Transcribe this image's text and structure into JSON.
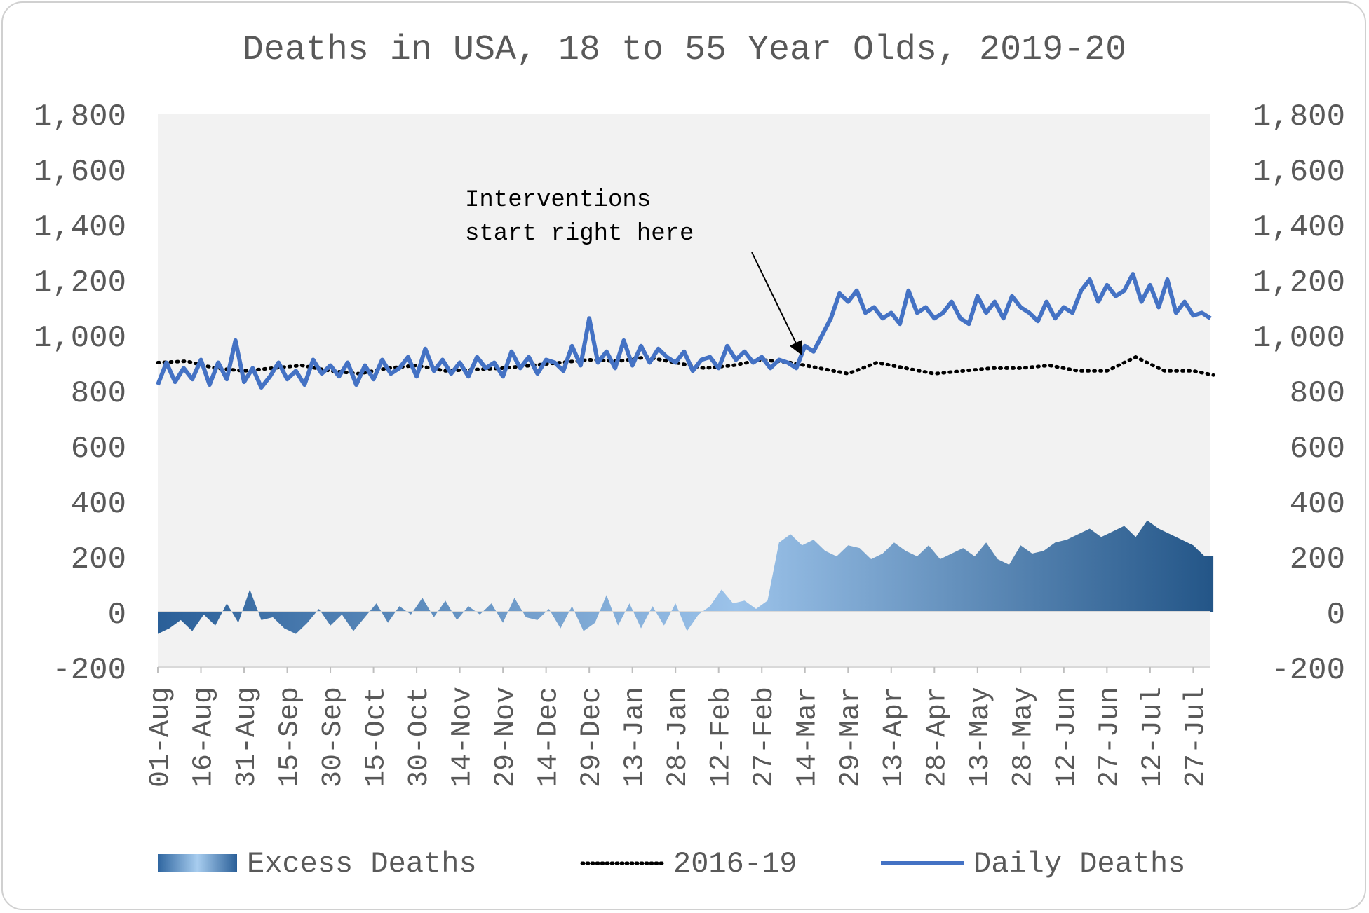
{
  "chart_data": {
    "type": "area+line",
    "title": "Deaths in USA, 18 to 55 Year Olds, 2019-20",
    "xlabel": "",
    "ylabel": "",
    "ylim": [
      -200,
      1800
    ],
    "y_ticks": [
      "1,800",
      "1,600",
      "1,400",
      "1,200",
      "1,000",
      "800",
      "600",
      "400",
      "200",
      "0",
      "-200"
    ],
    "y_tick_values": [
      1800,
      1600,
      1400,
      1200,
      1000,
      800,
      600,
      400,
      200,
      0,
      -200
    ],
    "x_tick_labels": [
      "01-Aug",
      "16-Aug",
      "31-Aug",
      "15-Sep",
      "30-Sep",
      "15-Oct",
      "30-Oct",
      "14-Nov",
      "29-Nov",
      "14-Dec",
      "29-Dec",
      "13-Jan",
      "28-Jan",
      "12-Feb",
      "27-Feb",
      "14-Mar",
      "29-Mar",
      "13-Apr",
      "28-Apr",
      "13-May",
      "28-May",
      "12-Jun",
      "27-Jun",
      "12-Jul",
      "27-Jul"
    ],
    "days": 367,
    "tick_interval_days": 15,
    "grid": false,
    "legend_position": "bottom",
    "series": [
      {
        "name": "Excess Deaths",
        "kind": "area",
        "x_days": [
          0,
          4,
          8,
          12,
          16,
          20,
          24,
          28,
          32,
          36,
          40,
          44,
          48,
          52,
          56,
          60,
          64,
          68,
          72,
          76,
          80,
          84,
          88,
          92,
          96,
          100,
          104,
          108,
          112,
          116,
          120,
          124,
          128,
          132,
          136,
          140,
          144,
          148,
          152,
          156,
          160,
          164,
          168,
          172,
          176,
          180,
          184,
          188,
          192,
          196,
          200,
          204,
          208,
          212,
          216,
          220,
          224,
          228,
          232,
          236,
          240,
          244,
          248,
          252,
          256,
          260,
          264,
          268,
          272,
          276,
          280,
          284,
          288,
          292,
          296,
          300,
          304,
          308,
          312,
          316,
          320,
          324,
          328,
          332,
          336,
          340,
          344,
          348,
          352,
          356,
          360,
          364,
          367
        ],
        "values": [
          -80,
          -60,
          -30,
          -70,
          -10,
          -50,
          30,
          -40,
          80,
          -30,
          -20,
          -60,
          -80,
          -40,
          10,
          -50,
          -10,
          -70,
          -20,
          30,
          -40,
          20,
          -10,
          50,
          -20,
          40,
          -30,
          20,
          -10,
          30,
          -40,
          50,
          -20,
          -30,
          10,
          -60,
          20,
          -70,
          -40,
          60,
          -50,
          30,
          -60,
          20,
          -50,
          30,
          -70,
          -10,
          20,
          80,
          30,
          40,
          10,
          40,
          250,
          280,
          240,
          260,
          220,
          200,
          240,
          230,
          190,
          210,
          250,
          220,
          200,
          240,
          190,
          210,
          230,
          200,
          250,
          190,
          170,
          240,
          210,
          220,
          250,
          260,
          280,
          300,
          270,
          290,
          310,
          270,
          330,
          300,
          280,
          260,
          240,
          200,
          200
        ],
        "color_light": "#9cc3ea",
        "color_dark": "#2a5a8c"
      },
      {
        "name": "2016-19",
        "kind": "line",
        "style": "dotted",
        "color": "#000000",
        "x_days": [
          0,
          10,
          20,
          30,
          40,
          50,
          60,
          70,
          80,
          90,
          100,
          110,
          120,
          130,
          140,
          150,
          160,
          170,
          180,
          190,
          200,
          210,
          220,
          230,
          240,
          250,
          260,
          270,
          280,
          290,
          300,
          310,
          320,
          330,
          340,
          350,
          360,
          367
        ],
        "values": [
          900,
          905,
          880,
          870,
          880,
          890,
          870,
          860,
          880,
          890,
          870,
          875,
          880,
          890,
          900,
          910,
          905,
          920,
          900,
          880,
          890,
          910,
          900,
          880,
          860,
          900,
          880,
          860,
          870,
          880,
          880,
          890,
          870,
          870,
          920,
          870,
          870,
          855
        ]
      },
      {
        "name": "Daily Deaths",
        "kind": "line",
        "style": "solid",
        "color": "#4472c4",
        "x_days": [
          0,
          3,
          6,
          9,
          12,
          15,
          18,
          21,
          24,
          27,
          30,
          33,
          36,
          39,
          42,
          45,
          48,
          51,
          54,
          57,
          60,
          63,
          66,
          69,
          72,
          75,
          78,
          81,
          84,
          87,
          90,
          93,
          96,
          99,
          102,
          105,
          108,
          111,
          114,
          117,
          120,
          123,
          126,
          129,
          132,
          135,
          138,
          141,
          144,
          147,
          150,
          153,
          156,
          159,
          162,
          165,
          168,
          171,
          174,
          177,
          180,
          183,
          186,
          189,
          192,
          195,
          198,
          201,
          204,
          207,
          210,
          213,
          216,
          219,
          222,
          225,
          228,
          231,
          234,
          237,
          240,
          243,
          246,
          249,
          252,
          255,
          258,
          261,
          264,
          267,
          270,
          273,
          276,
          279,
          282,
          285,
          288,
          291,
          294,
          297,
          300,
          303,
          306,
          309,
          312,
          315,
          318,
          321,
          324,
          327,
          330,
          333,
          336,
          339,
          342,
          345,
          348,
          351,
          354,
          357,
          360,
          363,
          366
        ],
        "values": [
          820,
          900,
          830,
          880,
          840,
          910,
          820,
          900,
          840,
          980,
          830,
          880,
          810,
          850,
          900,
          840,
          870,
          820,
          910,
          860,
          890,
          850,
          900,
          820,
          890,
          840,
          910,
          860,
          880,
          920,
          850,
          950,
          870,
          910,
          860,
          900,
          850,
          920,
          880,
          900,
          850,
          940,
          880,
          920,
          860,
          910,
          900,
          870,
          960,
          890,
          1060,
          900,
          940,
          880,
          980,
          890,
          960,
          900,
          950,
          920,
          900,
          940,
          870,
          910,
          920,
          880,
          960,
          910,
          940,
          900,
          920,
          880,
          910,
          900,
          880,
          960,
          940,
          1000,
          1060,
          1150,
          1120,
          1160,
          1080,
          1100,
          1060,
          1080,
          1040,
          1160,
          1080,
          1100,
          1060,
          1080,
          1120,
          1060,
          1040,
          1140,
          1080,
          1120,
          1060,
          1140,
          1100,
          1080,
          1050,
          1120,
          1060,
          1100,
          1080,
          1160,
          1200,
          1120,
          1180,
          1140,
          1160,
          1220,
          1120,
          1180,
          1100,
          1200,
          1080,
          1120,
          1070,
          1080,
          1060
        ]
      }
    ]
  },
  "annotation": {
    "line1": "Interventions",
    "line2": "start right here",
    "target_day": 225,
    "target_value": 915
  },
  "legend": [
    {
      "label": "Excess Deaths"
    },
    {
      "label": "2016-19"
    },
    {
      "label": "Daily Deaths"
    }
  ]
}
